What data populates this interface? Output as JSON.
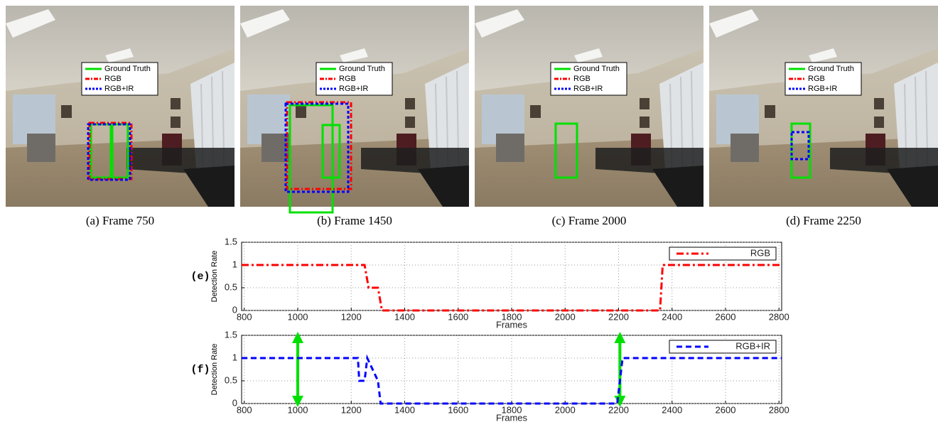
{
  "figure": {
    "panels": [
      {
        "caption": "(a) Frame 750"
      },
      {
        "caption": "(b) Frame 1450"
      },
      {
        "caption": "(c) Frame 2000"
      },
      {
        "caption": "(d) Frame 2250"
      }
    ],
    "photo_legend": [
      "Ground Truth",
      "RGB",
      "RGB+IR"
    ]
  },
  "chart_data": [
    {
      "type": "line",
      "label": "(e)",
      "ylabel": "Detection Rate",
      "xlabel": "Frames",
      "xlim": [
        790,
        2810
      ],
      "ylim": [
        0,
        1.5
      ],
      "xticks": [
        800,
        1000,
        1200,
        1400,
        1600,
        1800,
        2000,
        2200,
        2400,
        2600,
        2800
      ],
      "yticks": [
        0,
        0.5,
        1,
        1.5
      ],
      "grid": true,
      "legend_position": "upper right",
      "series": [
        {
          "name": "RGB",
          "color": "#ff0000",
          "dash": "dash-dot",
          "x": [
            790,
            1250,
            1265,
            1300,
            1315,
            2355,
            2365,
            2810
          ],
          "values": [
            1,
            1,
            0.5,
            0.5,
            0,
            0,
            1,
            1
          ]
        }
      ]
    },
    {
      "type": "line",
      "label": "(f)",
      "ylabel": "Detection Rate",
      "xlabel": "Frames",
      "xlim": [
        790,
        2810
      ],
      "ylim": [
        0,
        1.5
      ],
      "xticks": [
        800,
        1000,
        1200,
        1400,
        1600,
        1800,
        2000,
        2200,
        2400,
        2600,
        2800
      ],
      "yticks": [
        0,
        0.5,
        1,
        1.5
      ],
      "grid": true,
      "legend_position": "upper right",
      "events": {
        "color": "#00e000",
        "x": [
          1000,
          2205
        ]
      },
      "series": [
        {
          "name": "RGB+IR",
          "color": "#0000ff",
          "dash": "dash",
          "x": [
            790,
            1225,
            1230,
            1250,
            1260,
            1300,
            1310,
            2195,
            2215,
            2810
          ],
          "values": [
            1,
            1,
            0.5,
            0.5,
            1,
            0.5,
            0,
            0,
            1,
            1
          ]
        }
      ]
    }
  ]
}
